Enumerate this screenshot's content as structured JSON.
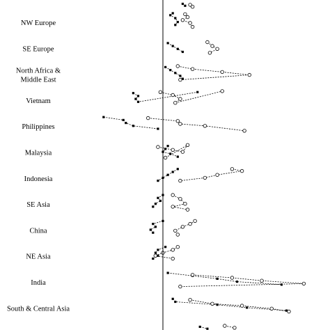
{
  "chart_data": {
    "type": "scatter",
    "title": "",
    "xlabel": "",
    "ylabel": "",
    "grid": false,
    "reference_line_x": 0,
    "xlim": [
      -1.3,
      3.0
    ],
    "regions": [
      {
        "label": "NW Europe",
        "filled": [
          [
            0.2,
            0.0
          ],
          [
            0.15,
            0.1
          ],
          [
            0.25,
            0.25
          ],
          [
            0.3,
            0.45
          ],
          [
            0.25,
            0.6
          ]
        ],
        "open": [
          [
            0.45,
            0.05
          ],
          [
            0.5,
            0.2
          ],
          [
            0.4,
            0.35
          ],
          [
            0.55,
            0.5
          ],
          [
            0.6,
            0.7
          ]
        ]
      },
      {
        "label": "SE Europe",
        "filled": [
          [
            0.1,
            0.2
          ],
          [
            0.2,
            0.35
          ],
          [
            0.3,
            0.5
          ],
          [
            0.4,
            0.65
          ]
        ],
        "open": [
          [
            0.9,
            0.15
          ],
          [
            1.0,
            0.35
          ],
          [
            1.1,
            0.5
          ],
          [
            0.95,
            0.7
          ]
        ]
      },
      {
        "label": "North Africa & Middle East",
        "filled": [
          [
            0.05,
            0.1
          ],
          [
            0.15,
            0.25
          ],
          [
            0.25,
            0.4
          ],
          [
            0.35,
            0.55
          ],
          [
            0.4,
            0.7
          ]
        ],
        "open": [
          [
            0.3,
            0.05
          ],
          [
            0.6,
            0.2
          ],
          [
            1.2,
            0.35
          ],
          [
            1.75,
            0.5
          ],
          [
            0.35,
            0.75
          ]
        ]
      },
      {
        "label": "Vietnam",
        "filled": [
          [
            -0.6,
            0.1
          ],
          [
            -0.5,
            0.25
          ],
          [
            -0.55,
            0.4
          ],
          [
            -0.5,
            0.55
          ],
          [
            0.7,
            0.05
          ]
        ],
        "open": [
          [
            -0.05,
            0.05
          ],
          [
            0.2,
            0.2
          ],
          [
            0.35,
            0.4
          ],
          [
            0.25,
            0.6
          ],
          [
            1.2,
            0.0
          ]
        ]
      },
      {
        "label": "Philippines",
        "filled": [
          [
            -1.2,
            0.0
          ],
          [
            -0.8,
            0.15
          ],
          [
            -0.75,
            0.3
          ],
          [
            -0.6,
            0.45
          ],
          [
            -0.1,
            0.6
          ]
        ],
        "open": [
          [
            -0.3,
            0.05
          ],
          [
            0.3,
            0.2
          ],
          [
            0.35,
            0.35
          ],
          [
            0.85,
            0.45
          ],
          [
            1.65,
            0.7
          ]
        ]
      },
      {
        "label": "Malaysia",
        "filled": [
          [
            0.1,
            0.15
          ],
          [
            0.05,
            0.3
          ],
          [
            0.0,
            0.45
          ],
          [
            0.15,
            0.55
          ],
          [
            0.3,
            0.7
          ]
        ],
        "open": [
          [
            -0.1,
            0.2
          ],
          [
            0.2,
            0.35
          ],
          [
            0.4,
            0.45
          ],
          [
            0.5,
            0.1
          ],
          [
            0.05,
            0.75
          ]
        ]
      },
      {
        "label": "Indonesia",
        "filled": [
          [
            0.3,
            0.0
          ],
          [
            0.2,
            0.15
          ],
          [
            0.1,
            0.3
          ],
          [
            0.0,
            0.45
          ],
          [
            -0.1,
            0.6
          ]
        ],
        "open": [
          [
            1.4,
            0.0
          ],
          [
            1.6,
            0.1
          ],
          [
            1.1,
            0.3
          ],
          [
            0.85,
            0.45
          ],
          [
            0.35,
            0.6
          ]
        ]
      },
      {
        "label": "SE Asia",
        "filled": [
          [
            0.0,
            0.0
          ],
          [
            -0.1,
            0.15
          ],
          [
            -0.05,
            0.3
          ],
          [
            -0.15,
            0.45
          ],
          [
            -0.2,
            0.6
          ]
        ],
        "open": [
          [
            0.2,
            0.0
          ],
          [
            0.35,
            0.2
          ],
          [
            0.45,
            0.45
          ],
          [
            0.2,
            0.6
          ],
          [
            0.5,
            0.75
          ]
        ]
      },
      {
        "label": "China",
        "filled": [
          [
            0.0,
            0.0
          ],
          [
            -0.2,
            0.15
          ],
          [
            -0.15,
            0.3
          ],
          [
            -0.25,
            0.45
          ],
          [
            -0.2,
            0.6
          ]
        ],
        "open": [
          [
            0.65,
            0.0
          ],
          [
            0.55,
            0.15
          ],
          [
            0.4,
            0.3
          ],
          [
            0.25,
            0.5
          ],
          [
            0.3,
            0.7
          ]
        ]
      },
      {
        "label": "NE Asia",
        "filled": [
          [
            0.05,
            0.0
          ],
          [
            -0.1,
            0.15
          ],
          [
            -0.15,
            0.3
          ],
          [
            -0.1,
            0.45
          ],
          [
            -0.2,
            0.6
          ]
        ],
        "open": [
          [
            0.3,
            0.0
          ],
          [
            0.2,
            0.15
          ],
          [
            0.0,
            0.3
          ],
          [
            -0.15,
            0.45
          ],
          [
            0.2,
            0.6
          ]
        ]
      },
      {
        "label": "India",
        "filled": [
          [
            0.1,
            0.0
          ],
          [
            0.6,
            0.15
          ],
          [
            1.1,
            0.3
          ],
          [
            1.5,
            0.45
          ],
          [
            2.4,
            0.6
          ]
        ],
        "open": [
          [
            0.6,
            0.1
          ],
          [
            1.4,
            0.25
          ],
          [
            2.0,
            0.4
          ],
          [
            2.85,
            0.55
          ],
          [
            0.35,
            0.7
          ]
        ]
      },
      {
        "label": "South & Central Asia",
        "filled": [
          [
            0.2,
            0.0
          ],
          [
            0.25,
            0.15
          ],
          [
            1.1,
            0.3
          ],
          [
            1.7,
            0.45
          ],
          [
            2.5,
            0.6
          ]
        ],
        "open": [
          [
            0.55,
            0.05
          ],
          [
            1.0,
            0.25
          ],
          [
            1.6,
            0.35
          ],
          [
            2.2,
            0.5
          ],
          [
            2.55,
            0.65
          ]
        ]
      }
    ],
    "top_partial": {
      "filled": [
        [
          0.4,
          0.85
        ],
        [
          0.45,
          0.95
        ]
      ],
      "open": [
        [
          0.55,
          0.9
        ],
        [
          0.6,
          1.0
        ]
      ]
    },
    "bottom_partial": {
      "filled": [
        [
          0.75,
          0.1
        ],
        [
          0.9,
          0.2
        ]
      ],
      "open": [
        [
          1.25,
          0.05
        ],
        [
          1.45,
          0.15
        ]
      ]
    }
  }
}
